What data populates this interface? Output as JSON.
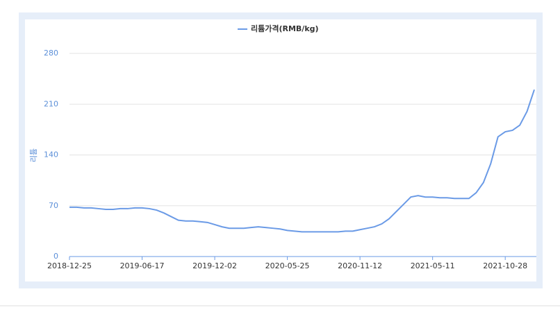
{
  "chart_data": {
    "type": "line",
    "y_label": "리튬",
    "categories": [
      "2018-12-25",
      null,
      null,
      null,
      null,
      null,
      null,
      null,
      null,
      null,
      "2019-06-17",
      null,
      null,
      null,
      null,
      null,
      null,
      null,
      null,
      null,
      "2019-12-02",
      null,
      null,
      null,
      null,
      null,
      null,
      null,
      null,
      null,
      "2020-05-25",
      null,
      null,
      null,
      null,
      null,
      null,
      null,
      null,
      null,
      "2020-11-12",
      null,
      null,
      null,
      null,
      null,
      null,
      null,
      null,
      null,
      "2021-05-11",
      null,
      null,
      null,
      null,
      null,
      null,
      null,
      null,
      null,
      "2021-10-28",
      null,
      null,
      null,
      null
    ],
    "series": [
      {
        "name": "리튬가격(RMB/kg)",
        "color": "#6a9ae6",
        "values": [
          68,
          68,
          67,
          67,
          66,
          65,
          65,
          66,
          66,
          67,
          67,
          66,
          64,
          60,
          55,
          50,
          49,
          49,
          48,
          47,
          44,
          41,
          39,
          39,
          39,
          40,
          41,
          40,
          39,
          38,
          36,
          35,
          34,
          34,
          34,
          34,
          34,
          34,
          35,
          35,
          37,
          39,
          41,
          45,
          52,
          62,
          72,
          82,
          84,
          82,
          82,
          81,
          81,
          80,
          80,
          80,
          88,
          102,
          128,
          165,
          172,
          174,
          181,
          200,
          230
        ]
      }
    ],
    "ylim": [
      0,
      280
    ],
    "yticks": [
      0,
      70,
      140,
      210,
      280
    ],
    "grid": true,
    "legend": "top"
  }
}
